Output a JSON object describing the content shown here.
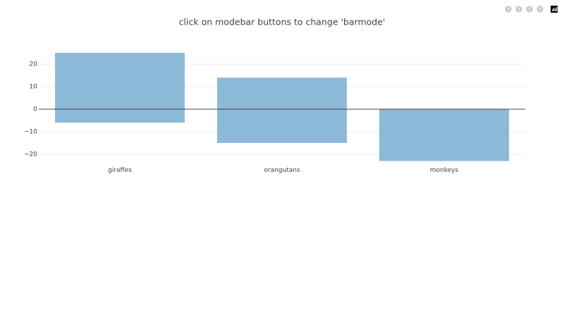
{
  "chart_data": {
    "type": "bar",
    "barmode": "relative",
    "title": "click on modebar buttons to change 'barmode'",
    "categories": [
      "giraffes",
      "orangutans",
      "monkeys"
    ],
    "series": [
      {
        "color": "#8db9d9",
        "values": [
          25,
          14,
          0
        ]
      },
      {
        "color": "#8db9d9",
        "values": [
          -6,
          -15,
          -23
        ]
      }
    ],
    "ylim": [
      -24.5,
      28.5
    ],
    "yticks": [
      {
        "value": -20,
        "label": "−20"
      },
      {
        "value": -10,
        "label": "−10"
      },
      0,
      10,
      20
    ],
    "grid": true
  }
}
